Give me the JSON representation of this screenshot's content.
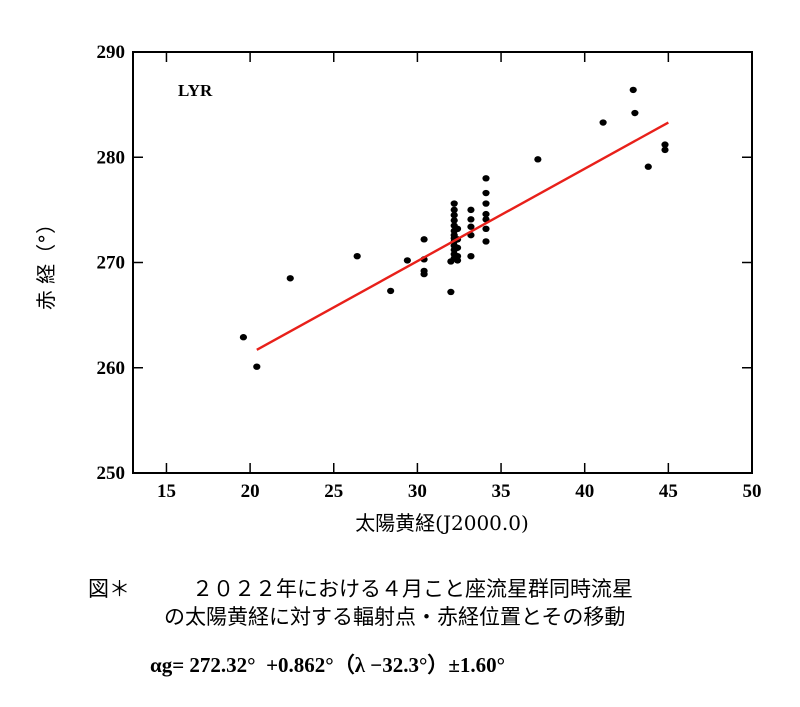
{
  "chart_data": {
    "type": "scatter",
    "series_label": "LYR",
    "xlabel": "太陽黄経(J2000.0)",
    "ylabel": "赤 経（°）",
    "xlim": [
      13,
      50
    ],
    "ylim": [
      250,
      290
    ],
    "x_ticks": [
      15,
      20,
      25,
      30,
      35,
      40,
      45,
      50
    ],
    "y_ticks": [
      250,
      260,
      270,
      280,
      290
    ],
    "trend_line": {
      "x": [
        20.4,
        45.0
      ],
      "y": [
        261.7,
        283.3
      ],
      "color": "#e8201a"
    },
    "points": [
      [
        19.6,
        262.9
      ],
      [
        20.4,
        260.1
      ],
      [
        22.4,
        268.5
      ],
      [
        26.4,
        270.6
      ],
      [
        28.4,
        267.3
      ],
      [
        29.4,
        270.2
      ],
      [
        30.4,
        272.2
      ],
      [
        30.4,
        270.3
      ],
      [
        30.4,
        269.2
      ],
      [
        30.4,
        268.9
      ],
      [
        32.0,
        267.2
      ],
      [
        32.2,
        275.6
      ],
      [
        32.2,
        275.0
      ],
      [
        32.2,
        274.5
      ],
      [
        32.2,
        274.0
      ],
      [
        32.2,
        273.5
      ],
      [
        32.2,
        273.0
      ],
      [
        32.2,
        272.6
      ],
      [
        32.2,
        272.3
      ],
      [
        32.2,
        272.0
      ],
      [
        32.2,
        271.6
      ],
      [
        32.2,
        271.2
      ],
      [
        32.2,
        270.8
      ],
      [
        32.2,
        270.4
      ],
      [
        32.0,
        270.1
      ],
      [
        32.4,
        273.2
      ],
      [
        32.4,
        272.2
      ],
      [
        32.4,
        271.4
      ],
      [
        32.4,
        270.6
      ],
      [
        32.4,
        270.2
      ],
      [
        33.2,
        275.0
      ],
      [
        33.2,
        274.1
      ],
      [
        33.2,
        273.4
      ],
      [
        33.2,
        272.6
      ],
      [
        33.2,
        270.6
      ],
      [
        34.1,
        278.0
      ],
      [
        34.1,
        276.6
      ],
      [
        34.1,
        275.6
      ],
      [
        34.1,
        274.6
      ],
      [
        34.1,
        274.1
      ],
      [
        34.1,
        273.2
      ],
      [
        34.1,
        272.0
      ],
      [
        37.2,
        279.8
      ],
      [
        41.1,
        283.3
      ],
      [
        42.9,
        286.4
      ],
      [
        43.0,
        284.2
      ],
      [
        43.8,
        279.1
      ],
      [
        44.8,
        281.2
      ],
      [
        44.8,
        280.7
      ]
    ],
    "point_color": "#000000"
  },
  "caption": {
    "prefix": "図＊",
    "line1": "２０２２年における４月こと座流星群同時流星",
    "line2": "の太陽黄経に対する輻射点・赤経位置とその移動"
  },
  "formula": "αg= 272.32°  +0.862°（λ −32.3°）±1.60°"
}
